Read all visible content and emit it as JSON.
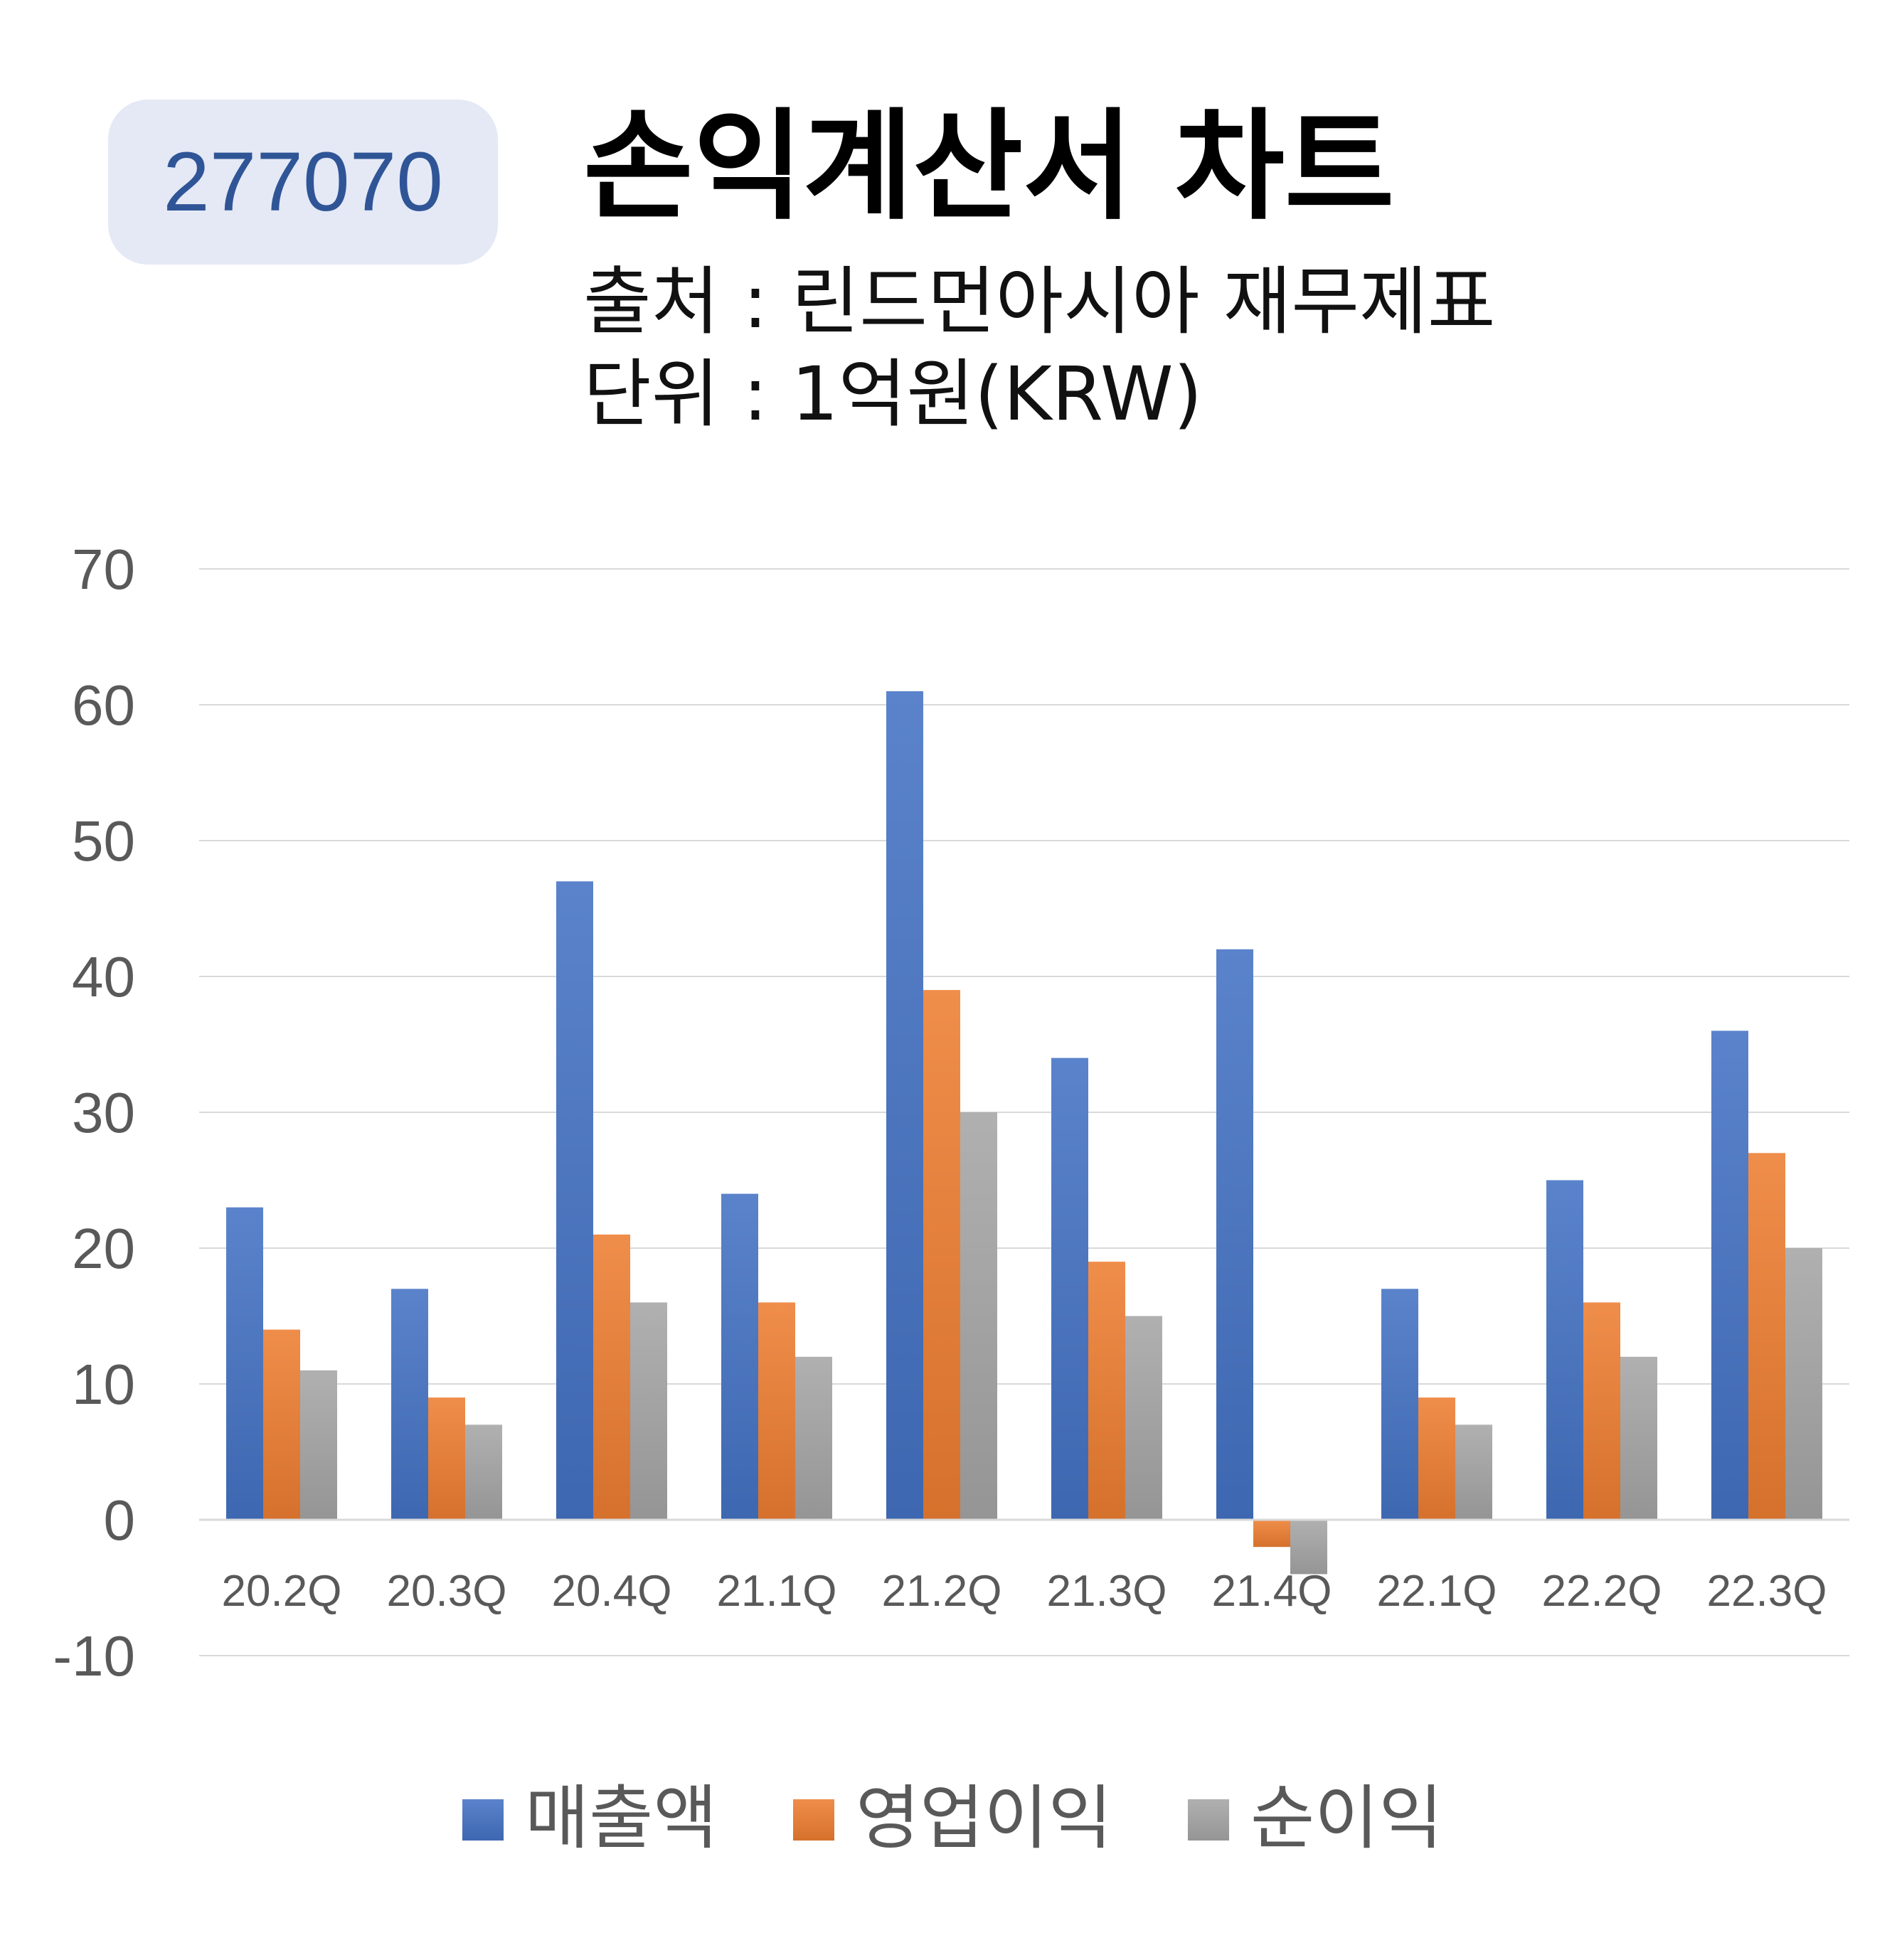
{
  "header": {
    "code": "277070",
    "title": "손익계산서 차트",
    "source": "출처 : 린드먼아시아 재무제표",
    "unit": "단위 : 1억원(KRW)"
  },
  "colors": {
    "series": [
      "#4472c4",
      "#ed7d31",
      "#a5a5a5"
    ],
    "grid": "#d9d9d9",
    "axis_text": "#595959"
  },
  "chart_data": {
    "type": "bar",
    "categories": [
      "20.2Q",
      "20.3Q",
      "20.4Q",
      "21.1Q",
      "21.2Q",
      "21.3Q",
      "21.4Q",
      "22.1Q",
      "22.2Q",
      "22.3Q"
    ],
    "series": [
      {
        "name": "매출액",
        "values": [
          23,
          17,
          47,
          24,
          61,
          34,
          42,
          17,
          25,
          36
        ]
      },
      {
        "name": "영업이익",
        "values": [
          14,
          9,
          21,
          16,
          39,
          19,
          -2,
          9,
          16,
          27
        ]
      },
      {
        "name": "순이익",
        "values": [
          11,
          7,
          16,
          12,
          30,
          15,
          -4,
          7,
          12,
          20
        ]
      }
    ],
    "ylim": [
      -10,
      70
    ],
    "yticks": [
      -10,
      0,
      10,
      20,
      30,
      40,
      50,
      60,
      70
    ],
    "grid": true,
    "legend": "bottom"
  }
}
